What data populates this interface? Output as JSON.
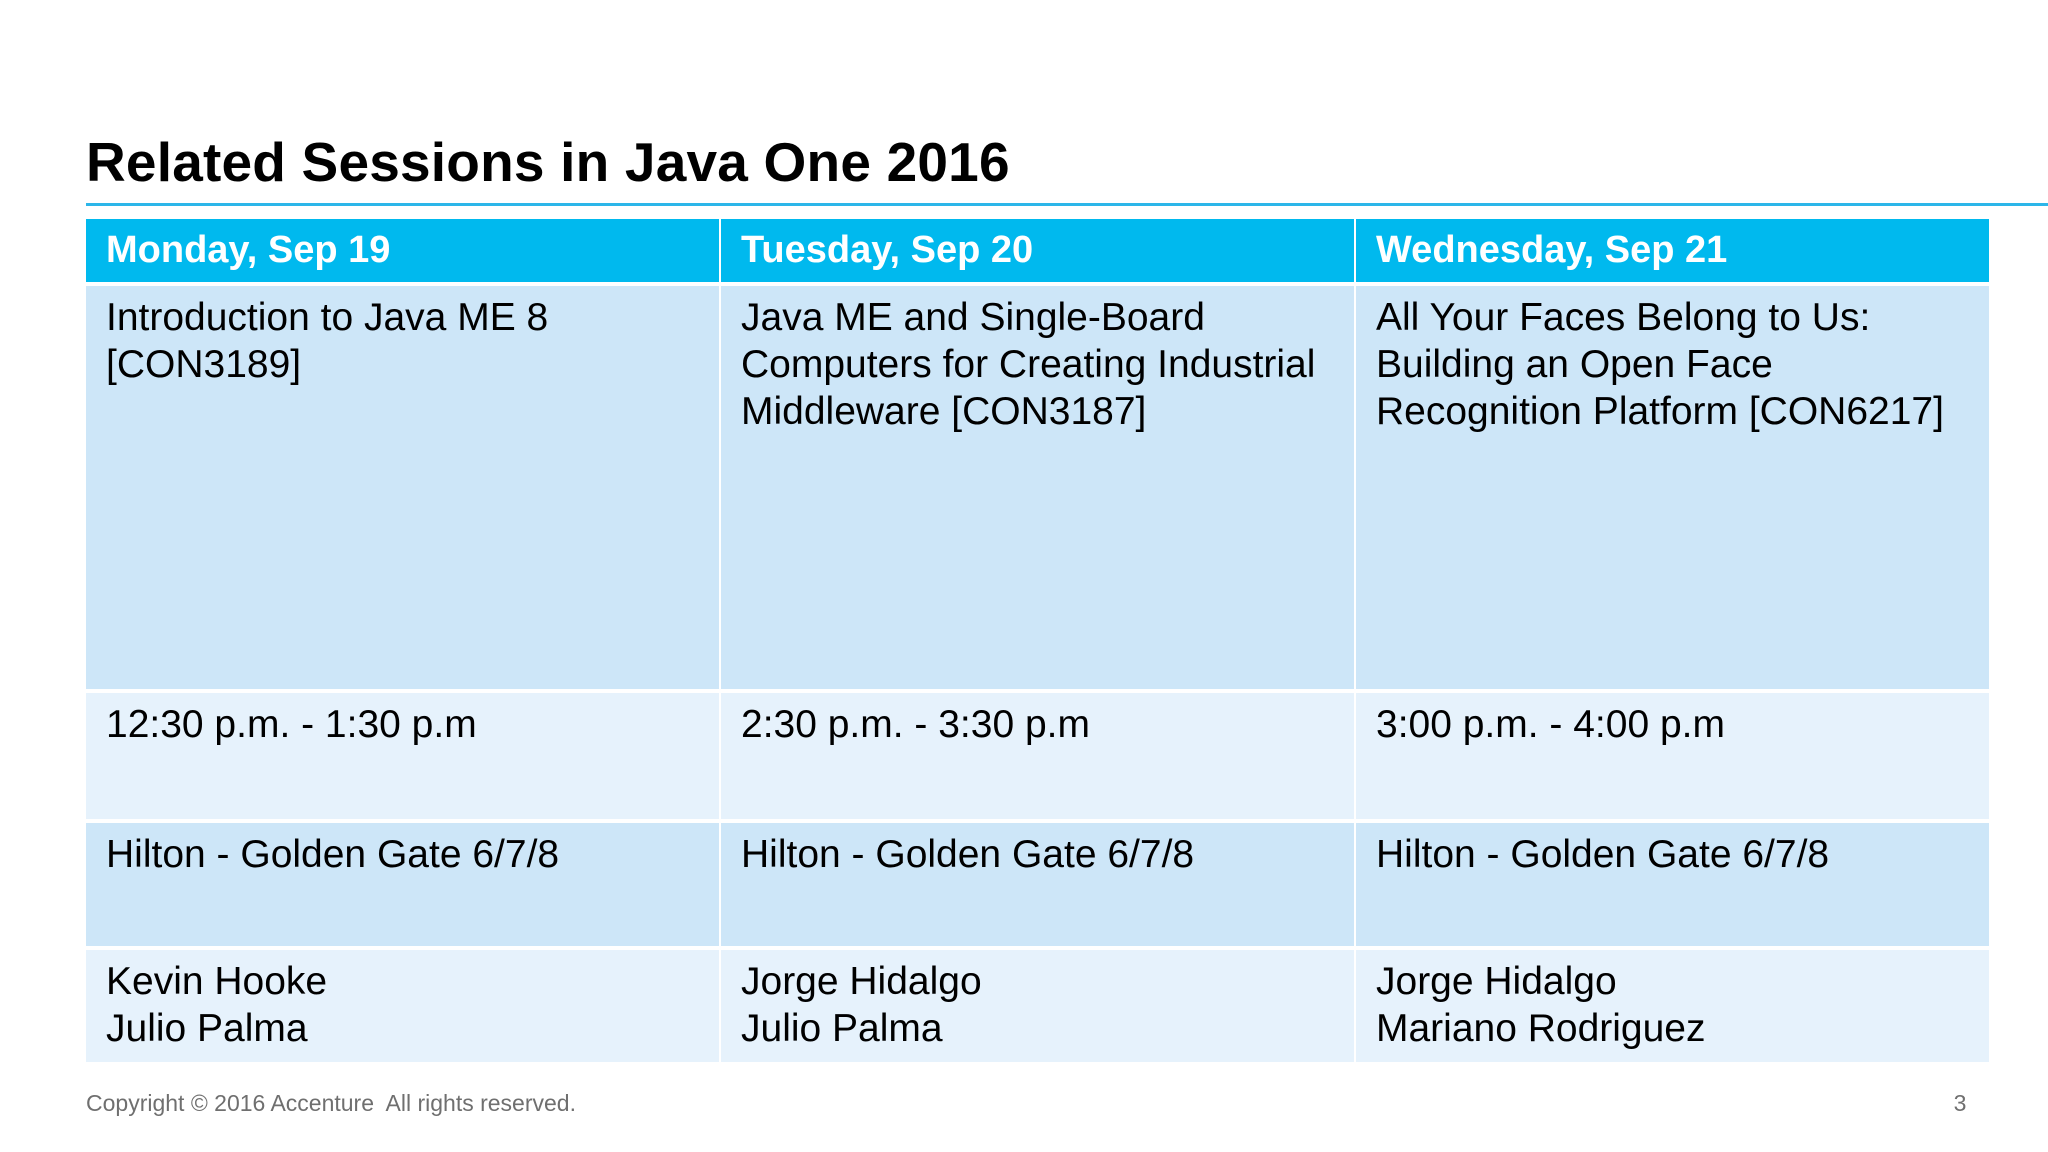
{
  "slide": {
    "title": "Related Sessions in Java One 2016",
    "page_number": "3",
    "copyright": "Copyright © 2016 Accenture  All rights reserved."
  },
  "colors": {
    "header_bg": "#00b9ee",
    "row_dark_bg": "#cde6f8",
    "row_light_bg": "#e6f2fc",
    "rule": "#2cb6e9",
    "footer_text": "#6f6f6f"
  },
  "table": {
    "columns": [
      {
        "day": "Monday, Sep 19",
        "session": "Introduction to Java ME 8\n[CON3189]",
        "time": "12:30 p.m. - 1:30 p.m",
        "location": "Hilton - Golden Gate 6/7/8",
        "speakers": "Kevin Hooke\nJulio Palma"
      },
      {
        "day": "Tuesday, Sep 20",
        "session": "Java ME and Single-Board\nComputers for Creating Industrial\nMiddleware [CON3187]",
        "time": "2:30 p.m. - 3:30 p.m",
        "location": "Hilton - Golden Gate 6/7/8",
        "speakers": "Jorge Hidalgo\nJulio Palma"
      },
      {
        "day": "Wednesday, Sep 21",
        "session": "All Your Faces Belong to Us:\nBuilding an Open Face\nRecognition Platform [CON6217]",
        "time": "3:00 p.m. - 4:00 p.m",
        "location": "Hilton - Golden Gate 6/7/8",
        "speakers": "Jorge Hidalgo\nMariano Rodriguez"
      }
    ]
  }
}
